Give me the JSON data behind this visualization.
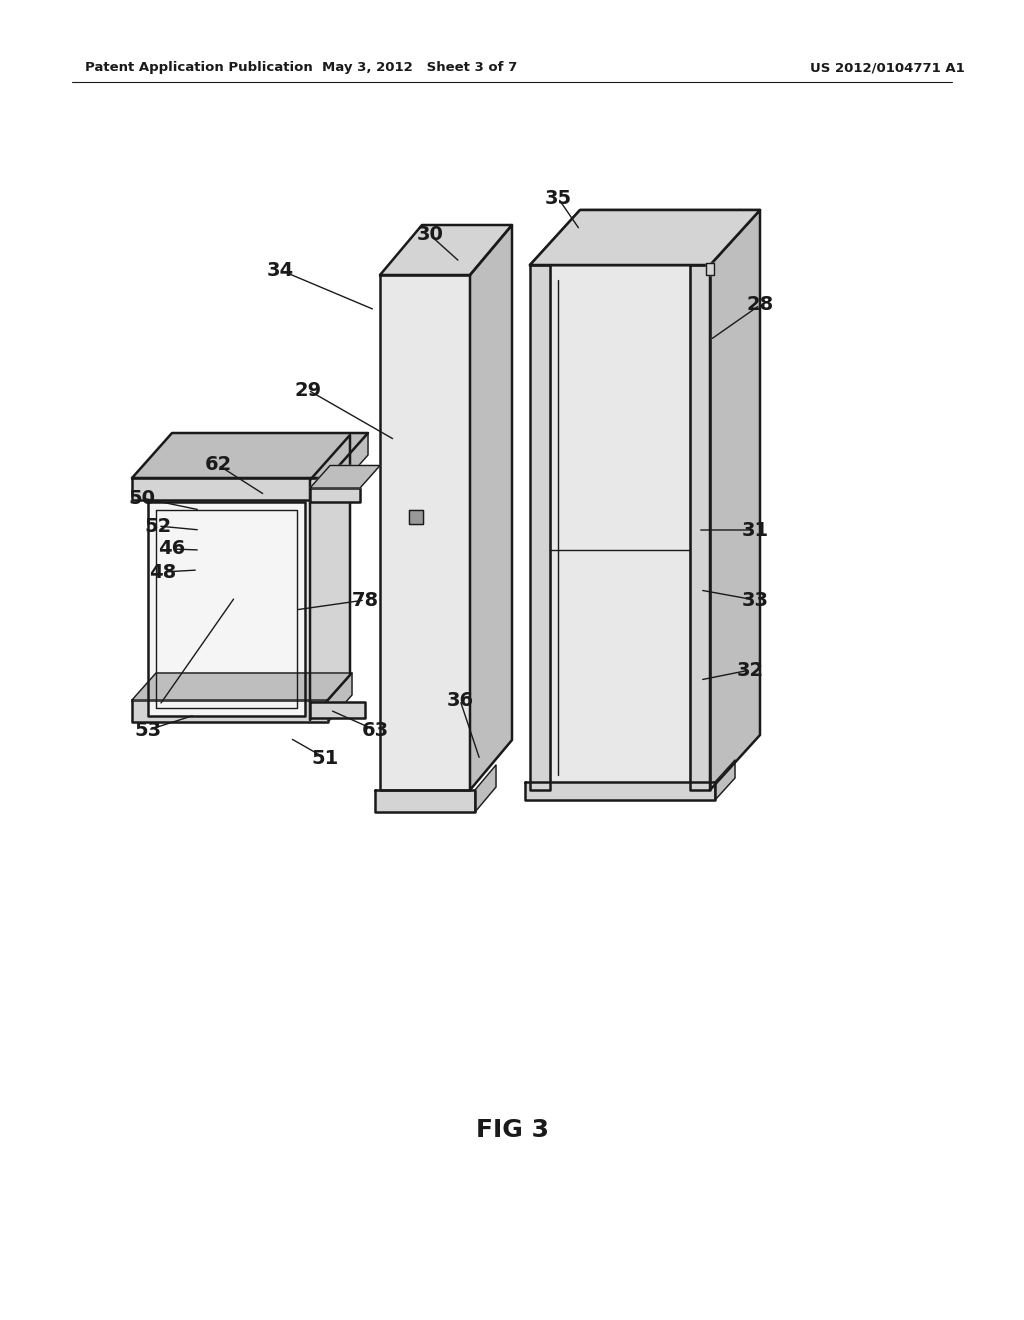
{
  "bg_color": "#ffffff",
  "line_color": "#1a1a1a",
  "header_left": "Patent Application Publication",
  "header_mid": "May 3, 2012   Sheet 3 of 7",
  "header_right": "US 2012/0104771 A1",
  "fig_label": "FIG 3",
  "fill_light": "#e8e8e8",
  "fill_mid": "#d4d4d4",
  "fill_dark": "#bebebe",
  "fill_white": "#f5f5f5"
}
